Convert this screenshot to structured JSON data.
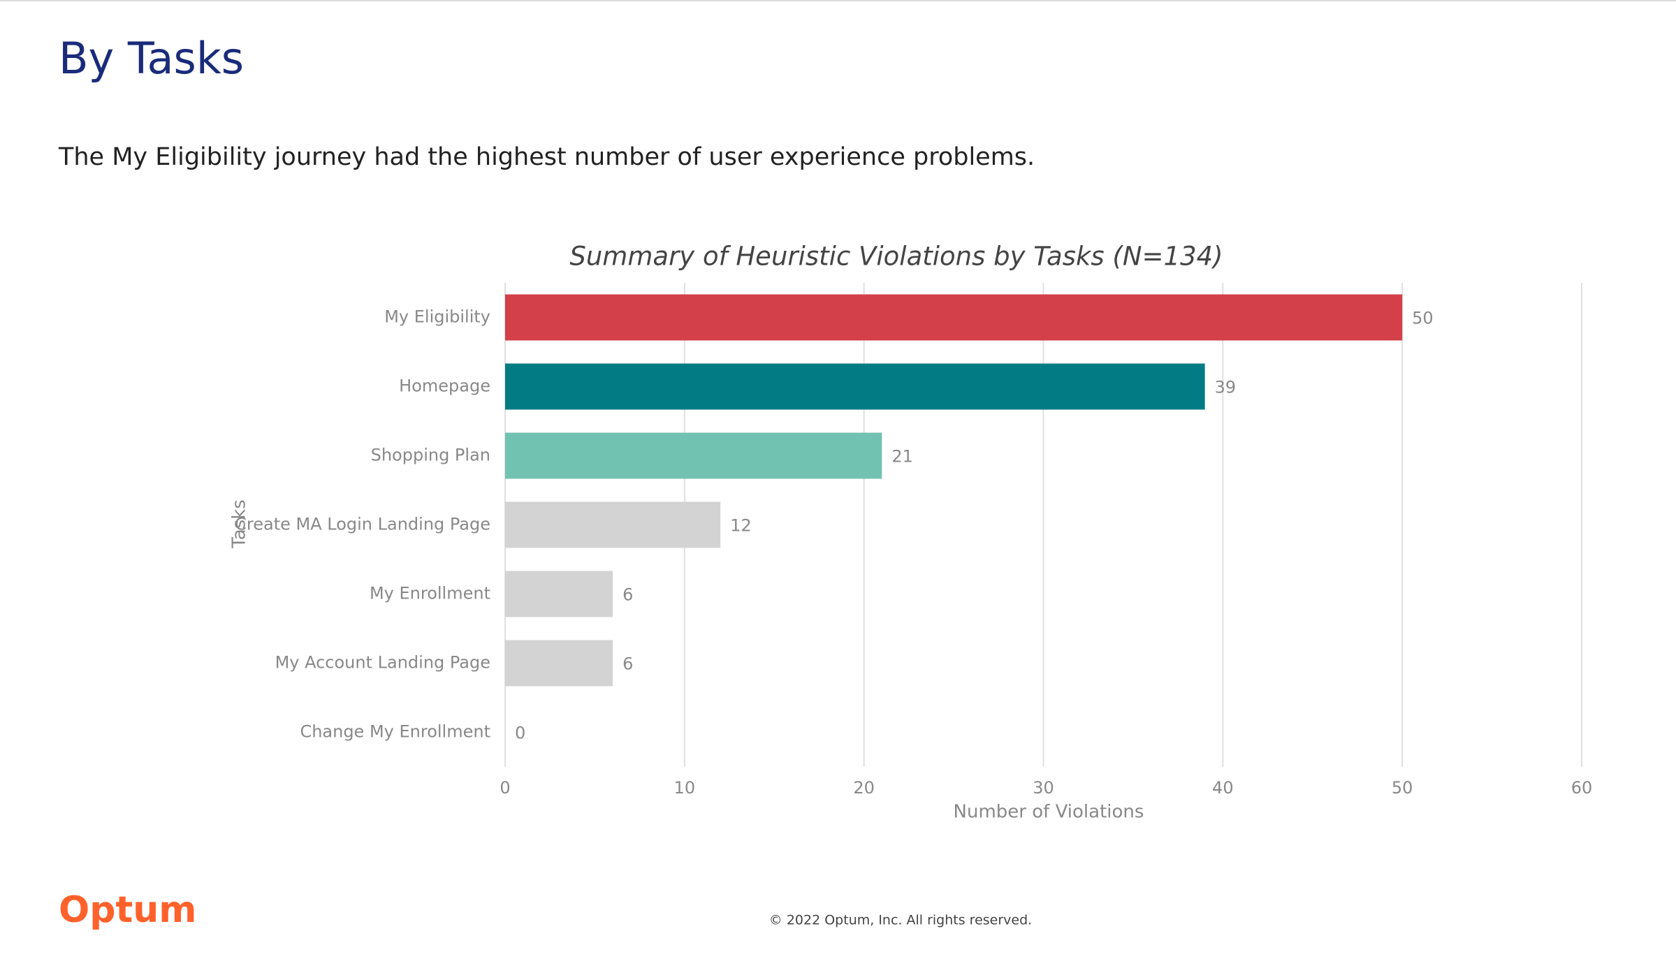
{
  "header": {
    "title": "By Tasks",
    "subtitle": "The My Eligibility journey had the highest number of user experience problems."
  },
  "chart_data": {
    "type": "bar",
    "orientation": "horizontal",
    "title": "Summary of Heuristic Violations by Tasks (N=134)",
    "categories": [
      "My Eligibility",
      "Homepage",
      "Shopping Plan",
      "Create MA Login Landing Page",
      "My Enrollment",
      "My Account Landing Page",
      "Change My Enrollment"
    ],
    "values": [
      50,
      39,
      21,
      12,
      6,
      6,
      0
    ],
    "colors": [
      "#d3404a",
      "#037b85",
      "#72c2b2",
      "#d3d3d3",
      "#d3d3d3",
      "#d3d3d3",
      "#d3d3d3"
    ],
    "xlim": [
      0,
      60
    ],
    "xticks": [
      0,
      10,
      20,
      30,
      40,
      50,
      60
    ],
    "xlabel": "Number of Violations",
    "ylabel": "Tasks",
    "grid": true
  },
  "footer": {
    "logo": "Optum",
    "copyright": "© 2022 Optum, Inc. All rights reserved."
  }
}
